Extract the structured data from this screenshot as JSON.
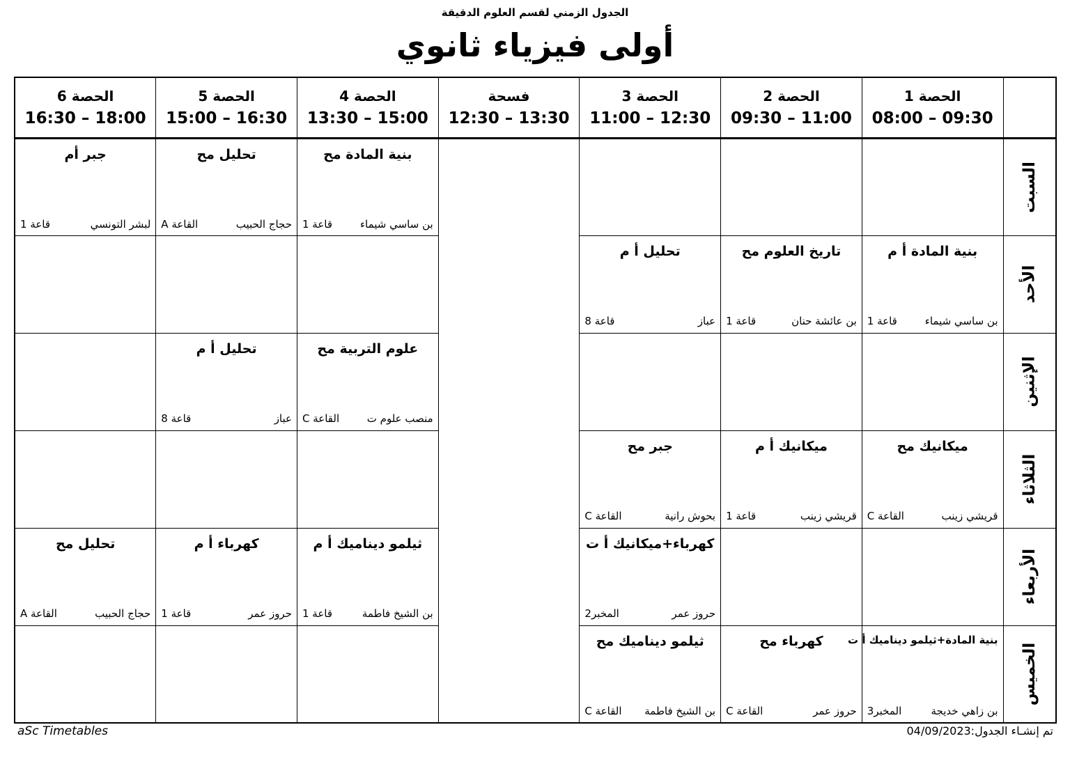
{
  "page": {
    "department_header": "الجدول الزمني لقسم العلوم الدقيقة",
    "title": "أولى فيزياء ثانوي",
    "footer_brand": "aSc Timetables",
    "footer_generated": "تم إنشـاء الجدول:04/09/2023"
  },
  "timetable": {
    "periods": [
      {
        "name": "الحصة 1",
        "time": "08:00 – 09:30"
      },
      {
        "name": "الحصة 2",
        "time": "09:30 – 11:00"
      },
      {
        "name": "الحصة 3",
        "time": "11:00 – 12:30"
      },
      {
        "name": "فسحة",
        "time": "12:30 – 13:30"
      },
      {
        "name": "الحصة 4",
        "time": "13:30 – 15:00"
      },
      {
        "name": "الحصة 5",
        "time": "15:00 – 16:30"
      },
      {
        "name": "الحصة 6",
        "time": "16:30 – 18:00"
      }
    ],
    "days": [
      {
        "name": "السبت",
        "lessons": [
          null,
          null,
          null,
          {
            "subject": "بنية المادة مح",
            "teacher": "بن ساسي شيماء",
            "room": "قاعة 1"
          },
          {
            "subject": "تحليل مح",
            "teacher": "حجاج الحبيب",
            "room": "القاعة A"
          },
          {
            "subject": "جبر أم",
            "teacher": "لبشر التونسي",
            "room": "قاعة 1"
          }
        ]
      },
      {
        "name": "الأحد",
        "lessons": [
          {
            "subject": "بنية المادة أ م",
            "teacher": "بن ساسي شيماء",
            "room": "قاعة 1"
          },
          {
            "subject": "تاريخ العلوم مح",
            "teacher": "بن عائشة حنان",
            "room": "قاعة 1"
          },
          {
            "subject": "تحليل أ م",
            "teacher": "عباز",
            "room": "قاعة 8"
          },
          null,
          null,
          null
        ]
      },
      {
        "name": "الإثنين",
        "lessons": [
          null,
          null,
          null,
          {
            "subject": "علوم التربية مح",
            "teacher": "منصب علوم ت",
            "room": "القاعة C"
          },
          {
            "subject": "تحليل أ م",
            "teacher": "عباز",
            "room": "قاعة 8"
          },
          null
        ]
      },
      {
        "name": "الثلاثاء",
        "lessons": [
          {
            "subject": "ميكانيك مح",
            "teacher": "قريشي زينب",
            "room": "القاعة C"
          },
          {
            "subject": "ميكانيك أ م",
            "teacher": "قريشي زينب",
            "room": "قاعة 1"
          },
          {
            "subject": "جبر مح",
            "teacher": "بحوش رانية",
            "room": "القاعة C"
          },
          null,
          null,
          null
        ]
      },
      {
        "name": "الأربعاء",
        "lessons": [
          null,
          null,
          {
            "subject": "كهرباء+ميكانيك أ ت",
            "teacher": "حروز عمر",
            "room": "المخبر2"
          },
          {
            "subject": "ثيلمو ديناميك أ م",
            "teacher": "بن الشيخ فاطمة",
            "room": "قاعة 1"
          },
          {
            "subject": "كهرباء أ م",
            "teacher": "حروز عمر",
            "room": "قاعة 1"
          },
          {
            "subject": "تحليل مح",
            "teacher": "حجاج الحبيب",
            "room": "القاعة A"
          }
        ]
      },
      {
        "name": "الخميس",
        "lessons": [
          {
            "subject": "بنية المادة+ثيلمو ديناميك أ ت",
            "teacher": "بن زاهي خديجة",
            "room": "المخبر3"
          },
          {
            "subject": "كهرباء مح",
            "teacher": "حروز عمر",
            "room": "القاعة C"
          },
          {
            "subject": "ثيلمو ديناميك مح",
            "teacher": "بن الشيخ فاطمة",
            "room": "القاعة C"
          },
          null,
          null,
          null
        ]
      }
    ]
  }
}
